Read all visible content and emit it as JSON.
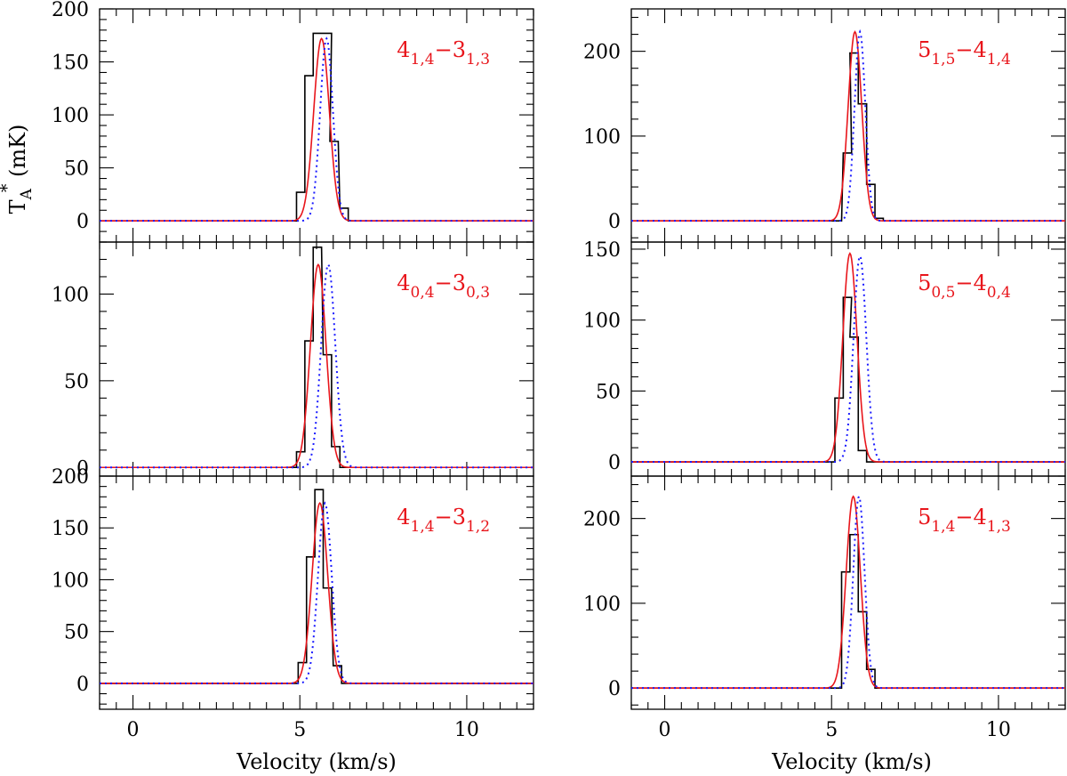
{
  "colors": {
    "observed": "#000000",
    "fit": "#e8151b",
    "model": "#1a1aff",
    "label": "#e8151b"
  },
  "chart_data": {
    "type": "line",
    "xlabel": "Velocity (km/s)",
    "xlim": [
      -1,
      12
    ],
    "xticks": [
      0,
      5,
      10
    ],
    "ylabel_main": "T",
    "ylabel_sub": "A",
    "ylabel_sup": "*",
    "ylabel_unit": " (mK)",
    "panels": [
      {
        "row": 0,
        "col": 0,
        "label": {
          "j": "4",
          "jsub": "1,4",
          "k": "3",
          "ksub": "1,3"
        },
        "ylim": [
          -20,
          200
        ],
        "yticks": [
          0,
          50,
          100,
          150,
          200
        ],
        "obs": [
          [
            4.9,
            27
          ],
          [
            5.15,
            137
          ],
          [
            5.4,
            177
          ],
          [
            5.7,
            177
          ],
          [
            5.9,
            75
          ],
          [
            6.2,
            12
          ],
          [
            6.45,
            0
          ]
        ],
        "fit": {
          "amp": 172,
          "center": 5.65,
          "fwhm": 0.55
        },
        "model": {
          "amp": 172,
          "center": 5.8,
          "fwhm": 0.45
        }
      },
      {
        "row": 0,
        "col": 1,
        "label": {
          "j": "5",
          "jsub": "1,5",
          "k": "4",
          "ksub": "1,4"
        },
        "ylim": [
          -25,
          250
        ],
        "yticks": [
          0,
          100,
          200
        ],
        "obs": [
          [
            5.05,
            0
          ],
          [
            5.35,
            80
          ],
          [
            5.55,
            198
          ],
          [
            5.8,
            138
          ],
          [
            6.05,
            43
          ],
          [
            6.3,
            3
          ]
        ],
        "fit": {
          "amp": 223,
          "center": 5.7,
          "fwhm": 0.48
        },
        "model": {
          "amp": 223,
          "center": 5.85,
          "fwhm": 0.38
        }
      },
      {
        "row": 1,
        "col": 0,
        "label": {
          "j": "4",
          "jsub": "0,4",
          "k": "3",
          "ksub": "0,3"
        },
        "ylim": [
          -5,
          130
        ],
        "yticks": [
          0,
          50,
          100
        ],
        "obs": [
          [
            4.9,
            9
          ],
          [
            5.15,
            73
          ],
          [
            5.4,
            127
          ],
          [
            5.7,
            65
          ],
          [
            5.95,
            12
          ],
          [
            6.2,
            0
          ]
        ],
        "fit": {
          "amp": 117,
          "center": 5.55,
          "fwhm": 0.55
        },
        "model": {
          "amp": 117,
          "center": 5.85,
          "fwhm": 0.5
        }
      },
      {
        "row": 1,
        "col": 1,
        "label": {
          "j": "5",
          "jsub": "0,5",
          "k": "4",
          "ksub": "0,4"
        },
        "ylim": [
          -10,
          155
        ],
        "yticks": [
          0,
          50,
          100,
          150
        ],
        "obs": [
          [
            5.1,
            45
          ],
          [
            5.35,
            116
          ],
          [
            5.55,
            88
          ],
          [
            5.8,
            8
          ],
          [
            6.05,
            0
          ]
        ],
        "fit": {
          "amp": 147,
          "center": 5.55,
          "fwhm": 0.5
        },
        "model": {
          "amp": 145,
          "center": 5.85,
          "fwhm": 0.45
        }
      },
      {
        "row": 2,
        "col": 0,
        "label": {
          "j": "4",
          "jsub": "1,4",
          "k": "3",
          "ksub": "1,2"
        },
        "ylim": [
          -25,
          200
        ],
        "yticks": [
          0,
          50,
          100,
          150,
          200
        ],
        "obs": [
          [
            4.95,
            20
          ],
          [
            5.2,
            122
          ],
          [
            5.45,
            187
          ],
          [
            5.7,
            92
          ],
          [
            6.0,
            17
          ],
          [
            6.25,
            0
          ]
        ],
        "fit": {
          "amp": 174,
          "center": 5.6,
          "fwhm": 0.55
        },
        "model": {
          "amp": 174,
          "center": 5.75,
          "fwhm": 0.48
        }
      },
      {
        "row": 2,
        "col": 1,
        "label": {
          "j": "5",
          "jsub": "1,4",
          "k": "4",
          "ksub": "1,3"
        },
        "ylim": [
          -25,
          250
        ],
        "yticks": [
          0,
          100,
          200
        ],
        "obs": [
          [
            5.3,
            137
          ],
          [
            5.55,
            181
          ],
          [
            5.8,
            90
          ],
          [
            6.05,
            22
          ],
          [
            6.3,
            0
          ]
        ],
        "fit": {
          "amp": 226,
          "center": 5.65,
          "fwhm": 0.5
        },
        "model": {
          "amp": 226,
          "center": 5.82,
          "fwhm": 0.4
        }
      }
    ]
  }
}
